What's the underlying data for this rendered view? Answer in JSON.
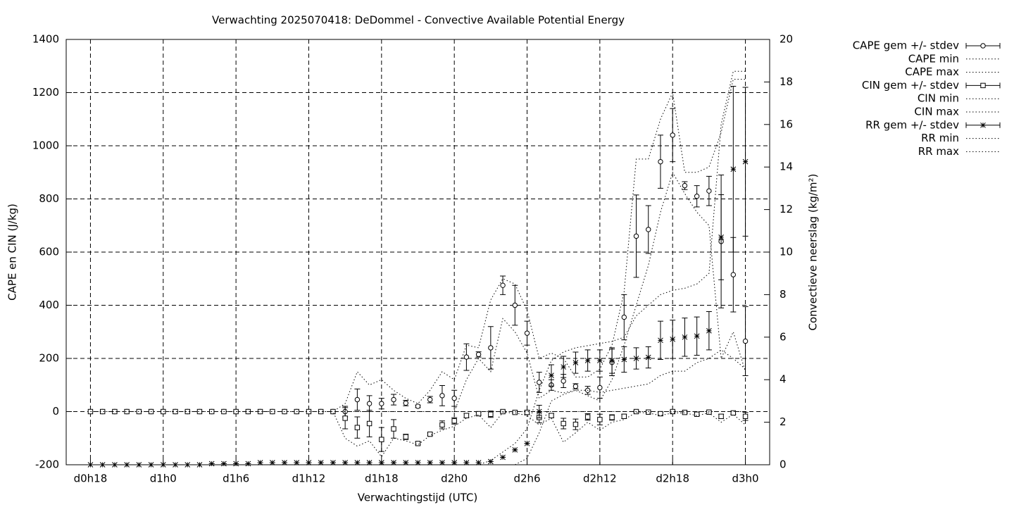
{
  "chart_data": {
    "type": "line",
    "title": "Verwachting 2025070418: DeDommel - Convective Available Potential Energy",
    "xlabel": "Verwachtingstijd (UTC)",
    "ylabel": "CAPE en CIN (J/kg)",
    "y2label": "Convectieve neerslag (kg/m²)",
    "x": [
      18,
      19,
      20,
      21,
      22,
      23,
      24,
      25,
      26,
      27,
      28,
      29,
      30,
      31,
      32,
      33,
      34,
      35,
      36,
      37,
      38,
      39,
      40,
      41,
      42,
      43,
      44,
      45,
      46,
      47,
      48,
      49,
      50,
      51,
      52,
      53,
      54,
      55,
      56,
      57,
      58,
      59,
      60,
      61,
      62,
      63,
      64,
      65,
      66,
      67,
      68,
      69,
      70,
      71,
      72
    ],
    "xlim": [
      16,
      74
    ],
    "xticks": [
      {
        "value": 18,
        "label": "d0h18"
      },
      {
        "value": 24,
        "label": "d1h0"
      },
      {
        "value": 30,
        "label": "d1h6"
      },
      {
        "value": 36,
        "label": "d1h12"
      },
      {
        "value": 42,
        "label": "d1h18"
      },
      {
        "value": 48,
        "label": "d2h0"
      },
      {
        "value": 54,
        "label": "d2h6"
      },
      {
        "value": 60,
        "label": "d2h12"
      },
      {
        "value": 66,
        "label": "d2h18"
      },
      {
        "value": 72,
        "label": "d3h0"
      }
    ],
    "ylim": [
      -200,
      1400
    ],
    "yticks": [
      -200,
      0,
      200,
      400,
      600,
      800,
      1000,
      1200,
      1400
    ],
    "y2lim": [
      0,
      20
    ],
    "y2ticks": [
      0,
      2,
      4,
      6,
      8,
      10,
      12,
      14,
      16,
      18,
      20
    ],
    "grid": true,
    "legend": "right",
    "series": [
      {
        "name": "CAPE gem +/- stdev",
        "color": "#000000",
        "style": "errorbars",
        "marker": "circle",
        "values": [
          0,
          0,
          0,
          0,
          0,
          0,
          0,
          0,
          0,
          0,
          0,
          0,
          0,
          0,
          0,
          0,
          0,
          0,
          0,
          0,
          0,
          0,
          45,
          30,
          30,
          45,
          32,
          20,
          45,
          60,
          50,
          205,
          215,
          240,
          475,
          400,
          295,
          110,
          100,
          115,
          95,
          80,
          90,
          185,
          355,
          660,
          685,
          940,
          1040,
          850,
          810,
          830,
          640,
          515,
          265
        ],
        "errors": [
          0,
          0,
          0,
          0,
          0,
          0,
          0,
          0,
          0,
          0,
          0,
          0,
          0,
          0,
          0,
          0,
          0,
          0,
          0,
          0,
          0,
          20,
          40,
          30,
          20,
          20,
          10,
          5,
          12,
          38,
          30,
          50,
          10,
          80,
          35,
          75,
          45,
          38,
          20,
          25,
          10,
          15,
          40,
          50,
          85,
          155,
          90,
          100,
          100,
          15,
          40,
          55,
          250,
          140,
          130
        ]
      },
      {
        "name": "CAPE min",
        "color": "#000000",
        "style": "dotted",
        "values": [
          0,
          0,
          0,
          0,
          0,
          0,
          0,
          0,
          0,
          0,
          0,
          0,
          0,
          0,
          0,
          0,
          0,
          0,
          0,
          0,
          0,
          0,
          0,
          0,
          0,
          0,
          0,
          0,
          0,
          0,
          0,
          120,
          200,
          150,
          350,
          300,
          220,
          50,
          80,
          70,
          80,
          60,
          40,
          120,
          250,
          400,
          550,
          750,
          900,
          820,
          750,
          700,
          200,
          300,
          150
        ]
      },
      {
        "name": "CAPE max",
        "color": "#000000",
        "style": "dotted",
        "values": [
          0,
          0,
          0,
          0,
          0,
          0,
          0,
          0,
          0,
          0,
          0,
          0,
          0,
          0,
          0,
          0,
          0,
          0,
          0,
          0,
          0,
          30,
          150,
          100,
          120,
          80,
          50,
          30,
          80,
          150,
          120,
          250,
          240,
          420,
          500,
          480,
          380,
          200,
          220,
          200,
          130,
          130,
          160,
          250,
          450,
          950,
          950,
          1100,
          1200,
          900,
          900,
          920,
          1050,
          1250,
          1250
        ]
      },
      {
        "name": "CIN gem +/- stdev",
        "color": "#000000",
        "style": "errorbars",
        "marker": "square",
        "values": [
          0,
          0,
          0,
          0,
          0,
          0,
          0,
          0,
          0,
          0,
          0,
          0,
          0,
          0,
          0,
          0,
          0,
          0,
          0,
          0,
          0,
          -25,
          -60,
          -45,
          -105,
          -65,
          -95,
          -120,
          -85,
          -50,
          -35,
          -15,
          -8,
          -10,
          0,
          -3,
          -3,
          -22,
          -15,
          -45,
          -48,
          -20,
          -30,
          -22,
          -18,
          0,
          -2,
          -8,
          0,
          -3,
          -10,
          -2,
          -18,
          -5,
          -18
        ],
        "errors": [
          0,
          0,
          0,
          0,
          0,
          0,
          0,
          0,
          0,
          0,
          0,
          0,
          0,
          0,
          0,
          0,
          0,
          0,
          0,
          0,
          0,
          40,
          40,
          50,
          45,
          35,
          10,
          5,
          5,
          15,
          12,
          8,
          5,
          12,
          3,
          3,
          8,
          20,
          8,
          20,
          20,
          12,
          20,
          10,
          8,
          3,
          2,
          5,
          3,
          2,
          5,
          3,
          8,
          5,
          15
        ]
      },
      {
        "name": "CIN min",
        "color": "#000000",
        "style": "dotted",
        "values": [
          0,
          0,
          0,
          0,
          0,
          0,
          0,
          0,
          0,
          0,
          0,
          0,
          0,
          0,
          0,
          0,
          0,
          0,
          0,
          0,
          0,
          -100,
          -130,
          -110,
          -170,
          -100,
          -110,
          -125,
          -90,
          -70,
          -55,
          -25,
          -12,
          -60,
          -3,
          -5,
          -15,
          -50,
          -25,
          -115,
          -80,
          -40,
          -70,
          -40,
          -30,
          -3,
          -5,
          -15,
          -5,
          -5,
          -15,
          -5,
          -40,
          -10,
          -50
        ]
      },
      {
        "name": "CIN max",
        "color": "#000000",
        "style": "dotted",
        "values": [
          0,
          0,
          0,
          0,
          0,
          0,
          0,
          0,
          0,
          0,
          0,
          0,
          0,
          0,
          0,
          0,
          0,
          0,
          0,
          0,
          0,
          0,
          0,
          0,
          0,
          0,
          0,
          0,
          0,
          0,
          0,
          0,
          0,
          0,
          0,
          0,
          0,
          0,
          0,
          0,
          0,
          0,
          0,
          0,
          0,
          0,
          0,
          0,
          0,
          0,
          0,
          0,
          0,
          0,
          0
        ]
      },
      {
        "name": "RR gem +/- stdev",
        "color": "#000000",
        "style": "errorbars",
        "marker": "star",
        "axis": "y2",
        "values": [
          0,
          0,
          0,
          0,
          0,
          0,
          0,
          0,
          0,
          0,
          0.05,
          0.05,
          0.05,
          0.05,
          0.1,
          0.1,
          0.1,
          0.1,
          0.1,
          0.1,
          0.1,
          0.1,
          0.1,
          0.1,
          0.1,
          0.1,
          0.1,
          0.1,
          0.1,
          0.1,
          0.1,
          0.1,
          0.1,
          0.15,
          0.35,
          0.7,
          1.0,
          2.5,
          4.2,
          4.6,
          4.8,
          4.9,
          4.9,
          4.9,
          4.95,
          5.0,
          5.05,
          5.85,
          5.9,
          6.0,
          6.05,
          6.3,
          10.7,
          13.9,
          14.25
        ],
        "errors": [
          0,
          0,
          0,
          0,
          0,
          0,
          0,
          0,
          0,
          0,
          0,
          0,
          0,
          0,
          0,
          0,
          0,
          0,
          0,
          0,
          0,
          0,
          0,
          0,
          0,
          0,
          0,
          0,
          0,
          0,
          0,
          0,
          0,
          0,
          0,
          0,
          0,
          0.3,
          0.5,
          0.5,
          0.5,
          0.5,
          0.5,
          0.6,
          0.6,
          0.5,
          0.5,
          0.9,
          0.9,
          0.9,
          0.9,
          0.9,
          2.0,
          3.9,
          3.5
        ]
      },
      {
        "name": "RR min",
        "color": "#000000",
        "style": "dotted",
        "axis": "y2",
        "values": [
          0,
          0,
          0,
          0,
          0,
          0,
          0,
          0,
          0,
          0,
          0,
          0,
          0,
          0,
          0,
          0,
          0,
          0,
          0,
          0,
          0,
          0,
          0,
          0,
          0,
          0,
          0,
          0,
          0,
          0,
          0,
          0,
          0,
          0,
          0,
          0,
          0.3,
          1.5,
          3.0,
          3.3,
          3.5,
          3.5,
          3.4,
          3.5,
          3.6,
          3.7,
          3.8,
          4.2,
          4.4,
          4.4,
          4.8,
          5.0,
          5.4,
          5.0,
          4.5
        ]
      },
      {
        "name": "RR max",
        "color": "#000000",
        "style": "dotted",
        "axis": "y2",
        "values": [
          0,
          0,
          0,
          0,
          0,
          0,
          0,
          0,
          0,
          0,
          0,
          0,
          0,
          0,
          0,
          0,
          0,
          0,
          0,
          0,
          0,
          0,
          0,
          0,
          0,
          0,
          0,
          0,
          0,
          0,
          0,
          0,
          0,
          0.2,
          0.6,
          1.0,
          1.7,
          3.5,
          4.9,
          5.3,
          5.5,
          5.6,
          5.7,
          5.8,
          6.0,
          7.0,
          7.5,
          8.0,
          8.2,
          8.3,
          8.5,
          9.0,
          16.0,
          18.5,
          18.5
        ]
      }
    ]
  }
}
